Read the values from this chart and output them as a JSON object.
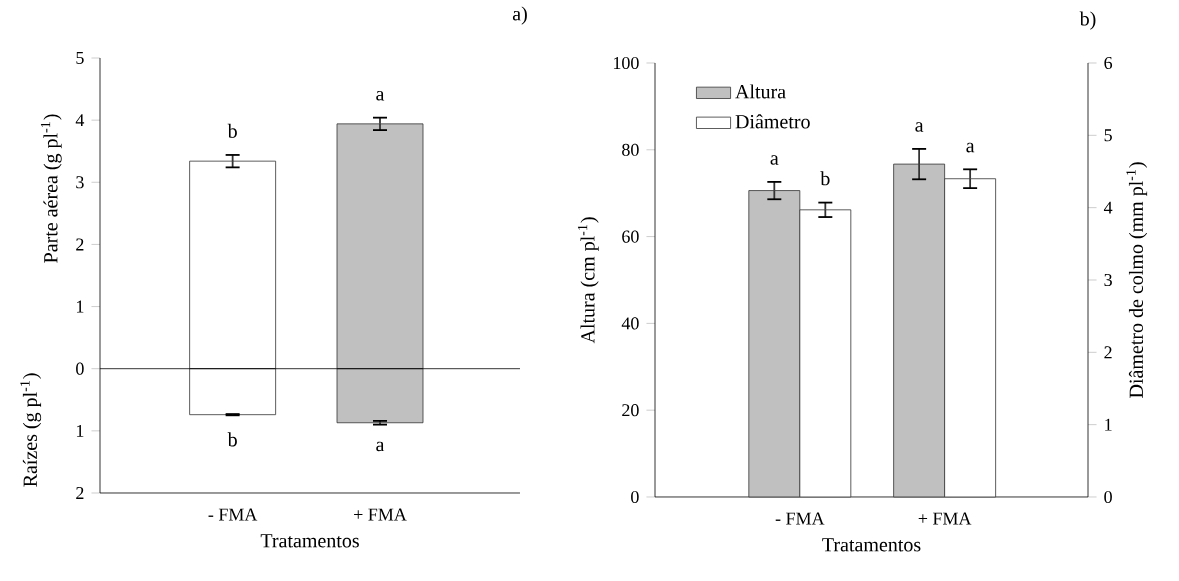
{
  "chart_data": [
    {
      "type": "bar",
      "title": "a)",
      "xlabel": "Tratamentos",
      "ylabel": "Parte aérea (g pl$^{-1}$)",
      "categories": [
        "- FMA",
        "+ FMA"
      ],
      "stacked": true,
      "series": [
        {
          "values": [
            3.34,
            3.94
          ],
          "colors": [
            "#ffffff",
            "#c0c0c0"
          ],
          "errors": [
            0.1,
            0.1
          ]
        },
        {
          "values": [
            -0.74,
            -0.87
          ],
          "colors": [
            "#ffffff",
            "#c0c0c0"
          ],
          "errors": [
            0.01,
            0.03
          ]
        }
      ],
      "ylim": [
        -2,
        5
      ],
      "yticks": [
        {
          "value": -2,
          "label": "2"
        },
        {
          "value": -1,
          "label": "1"
        },
        0,
        1,
        2,
        3,
        4,
        5
      ],
      "ref_lines": [
        {
          "axis": "y",
          "value": 0
        }
      ],
      "annotations": [
        "Raízes (g pl$^{-1}$)",
        {
          "text": "b",
          "x": "- FMA",
          "y": 3.34
        },
        {
          "text": "a",
          "x": "+ FMA",
          "y": 3.94
        },
        {
          "text": "b",
          "x": "- FMA",
          "y": -0.74
        },
        {
          "text": "a",
          "x": "+ FMA",
          "y": -0.87
        }
      ]
    },
    {
      "type": "bar",
      "title": "b)",
      "xlabel": "Tratamentos",
      "ylabel": "Altura (cm pl$^{-1}$)",
      "y2label": "Diâmetro de colmo (mm pl$^{-1}$)",
      "categories": [
        "- FMA",
        "+ FMA"
      ],
      "series": [
        {
          "name": "Altura",
          "color": "#c0c0c0",
          "values": [
            70.6,
            76.7
          ],
          "errors": [
            2,
            3.5
          ]
        },
        {
          "name": "Diâmetro",
          "color": "#ffffff",
          "values": [
            3.97,
            4.4
          ],
          "errors": [
            0.1,
            0.13
          ],
          "axis": "y2"
        }
      ],
      "ylim": [
        0,
        100
      ],
      "yticks": [
        0,
        20,
        40,
        60,
        80,
        100
      ],
      "y2lim": [
        0,
        6
      ],
      "y2ticks": [
        0,
        1,
        2,
        3,
        4,
        5,
        6
      ],
      "legend": "top left",
      "annotations": [
        {
          "text": "a",
          "x": "- FMA",
          "y": 70.6
        },
        {
          "text": "b",
          "x": "- FMA",
          "y": 66.2
        },
        {
          "text": "a",
          "x": "+ FMA",
          "y": 76.7
        },
        {
          "text": "a",
          "x": "+ FMA",
          "y": 73.3
        }
      ]
    }
  ]
}
